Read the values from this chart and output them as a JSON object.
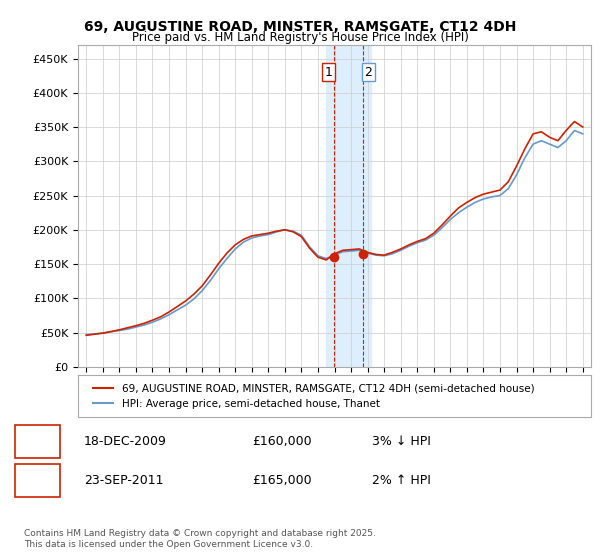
{
  "title": "69, AUGUSTINE ROAD, MINSTER, RAMSGATE, CT12 4DH",
  "subtitle": "Price paid vs. HM Land Registry's House Price Index (HPI)",
  "ylabel_ticks": [
    "£0",
    "£50K",
    "£100K",
    "£150K",
    "£200K",
    "£250K",
    "£300K",
    "£350K",
    "£400K",
    "£450K"
  ],
  "ytick_values": [
    0,
    50000,
    100000,
    150000,
    200000,
    250000,
    300000,
    350000,
    400000,
    450000
  ],
  "ylim": [
    0,
    470000
  ],
  "xlim_start": 1994.5,
  "xlim_end": 2025.5,
  "transaction1": {
    "date_num": 2009.96,
    "price": 160000,
    "label": "1"
  },
  "transaction2": {
    "date_num": 2011.73,
    "price": 165000,
    "label": "2"
  },
  "shaded_x1": 2009.5,
  "shaded_x2": 2012.2,
  "legend_line1": "69, AUGUSTINE ROAD, MINSTER, RAMSGATE, CT12 4DH (semi-detached house)",
  "legend_line2": "HPI: Average price, semi-detached house, Thanet",
  "table_rows": [
    {
      "num": "1",
      "date": "18-DEC-2009",
      "price": "£160,000",
      "change": "3% ↓ HPI"
    },
    {
      "num": "2",
      "date": "23-SEP-2011",
      "price": "£165,000",
      "change": "2% ↑ HPI"
    }
  ],
  "footer": "Contains HM Land Registry data © Crown copyright and database right 2025.\nThis data is licensed under the Open Government Licence v3.0.",
  "background_color": "#ffffff",
  "plot_bg_color": "#ffffff",
  "grid_color": "#cccccc",
  "hpi_color": "#6699cc",
  "price_color": "#cc2200",
  "shade_color": "#ddeeff",
  "transaction_dot_color": "#cc2200",
  "title_color": "#000000",
  "hpi_data_x": [
    1995,
    1995.5,
    1996,
    1996.5,
    1997,
    1997.5,
    1998,
    1998.5,
    1999,
    1999.5,
    2000,
    2000.5,
    2001,
    2001.5,
    2002,
    2002.5,
    2003,
    2003.5,
    2004,
    2004.5,
    2005,
    2005.5,
    2006,
    2006.5,
    2007,
    2007.5,
    2008,
    2008.5,
    2009,
    2009.5,
    2010,
    2010.5,
    2011,
    2011.5,
    2012,
    2012.5,
    2013,
    2013.5,
    2014,
    2014.5,
    2015,
    2015.5,
    2016,
    2016.5,
    2017,
    2017.5,
    2018,
    2018.5,
    2019,
    2019.5,
    2020,
    2020.5,
    2021,
    2021.5,
    2022,
    2022.5,
    2023,
    2023.5,
    2024,
    2024.5,
    2025
  ],
  "hpi_data_y": [
    47000,
    48000,
    49500,
    51000,
    53000,
    55000,
    58000,
    61000,
    65000,
    70000,
    76000,
    83000,
    90000,
    99000,
    111000,
    126000,
    143000,
    158000,
    172000,
    182000,
    188000,
    191000,
    193000,
    197000,
    200000,
    198000,
    192000,
    175000,
    162000,
    158000,
    163000,
    168000,
    169000,
    170000,
    166000,
    163000,
    162000,
    165000,
    170000,
    176000,
    181000,
    185000,
    192000,
    203000,
    215000,
    225000,
    233000,
    240000,
    245000,
    248000,
    250000,
    260000,
    280000,
    305000,
    325000,
    330000,
    325000,
    320000,
    330000,
    345000,
    340000
  ],
  "price_data_x": [
    1995,
    1995.5,
    1996,
    1996.5,
    1997,
    1997.5,
    1998,
    1998.5,
    1999,
    1999.5,
    2000,
    2000.5,
    2001,
    2001.5,
    2002,
    2002.5,
    2003,
    2003.5,
    2004,
    2004.5,
    2005,
    2005.5,
    2006,
    2006.5,
    2007,
    2007.5,
    2008,
    2008.5,
    2009,
    2009.5,
    2010,
    2010.5,
    2011,
    2011.5,
    2012,
    2012.5,
    2013,
    2013.5,
    2014,
    2014.5,
    2015,
    2015.5,
    2016,
    2016.5,
    2017,
    2017.5,
    2018,
    2018.5,
    2019,
    2019.5,
    2020,
    2020.5,
    2021,
    2021.5,
    2022,
    2022.5,
    2023,
    2023.5,
    2024,
    2024.5,
    2025
  ],
  "price_data_y": [
    46000,
    47500,
    49000,
    51500,
    54000,
    57000,
    60000,
    63500,
    68000,
    73000,
    80000,
    88000,
    96000,
    106000,
    118000,
    134000,
    151000,
    166000,
    178000,
    186000,
    191000,
    193000,
    195000,
    198000,
    200000,
    197000,
    190000,
    173000,
    160000,
    156000,
    165000,
    170000,
    171000,
    172000,
    167000,
    164000,
    163000,
    167000,
    172000,
    178000,
    183000,
    187000,
    195000,
    207000,
    220000,
    232000,
    240000,
    247000,
    252000,
    255000,
    258000,
    270000,
    293000,
    318000,
    340000,
    343000,
    335000,
    330000,
    345000,
    358000,
    350000
  ]
}
